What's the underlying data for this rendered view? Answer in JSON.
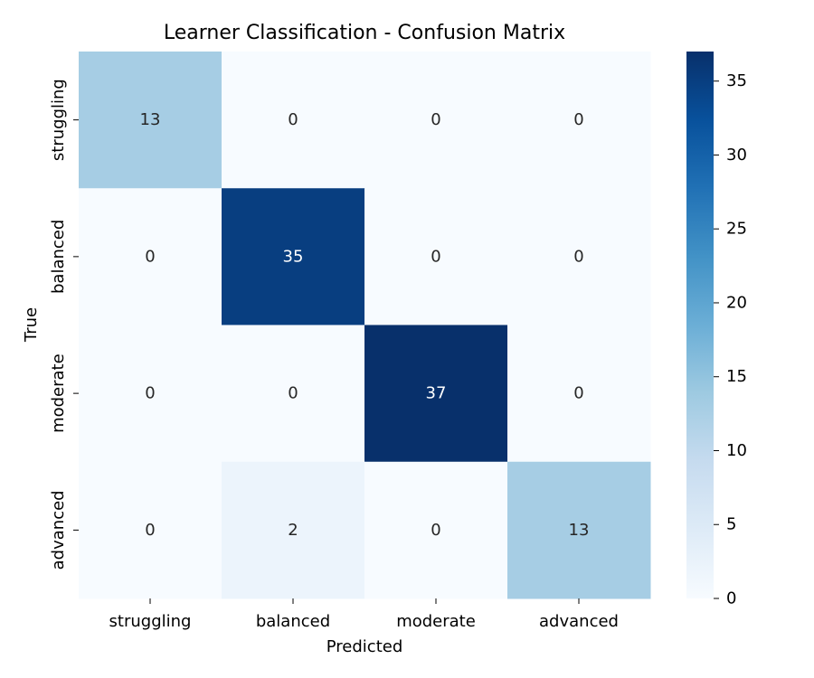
{
  "chart_data": {
    "type": "heatmap",
    "title": "Learner Classification - Confusion Matrix",
    "xlabel": "Predicted",
    "ylabel": "True",
    "x_categories": [
      "struggling",
      "balanced",
      "moderate",
      "advanced"
    ],
    "y_categories": [
      "struggling",
      "balanced",
      "moderate",
      "advanced"
    ],
    "values": [
      [
        13,
        0,
        0,
        0
      ],
      [
        0,
        35,
        0,
        0
      ],
      [
        0,
        0,
        37,
        0
      ],
      [
        0,
        2,
        0,
        13
      ]
    ],
    "colorbar": {
      "colormap": "Blues",
      "range": [
        0,
        37
      ],
      "ticks": [
        0,
        5,
        10,
        15,
        20,
        25,
        30,
        35
      ]
    }
  }
}
